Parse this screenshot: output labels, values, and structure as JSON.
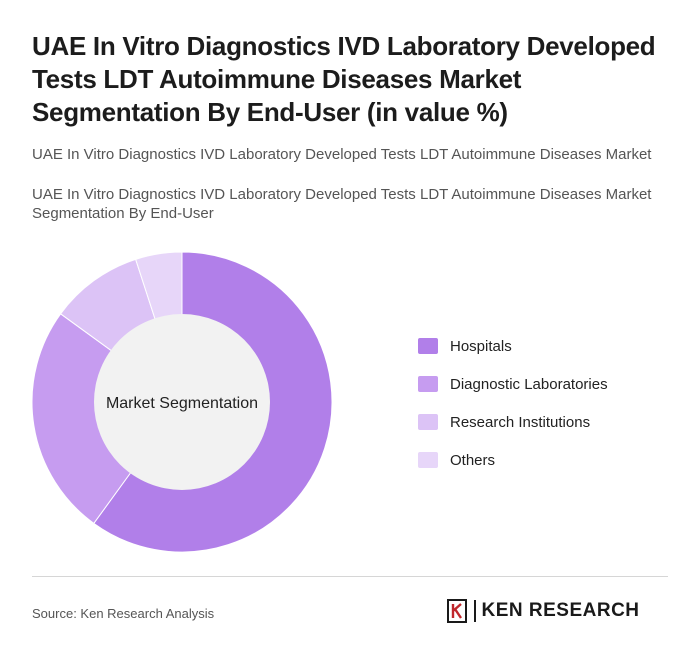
{
  "title": "UAE In Vitro Diagnostics IVD Laboratory Developed Tests LDT Autoimmune Diseases Market Segmentation By End-User (in value %)",
  "subtitle_1": "UAE In Vitro Diagnostics IVD Laboratory Developed Tests LDT Autoimmune Diseases Market",
  "subtitle_2": "UAE In Vitro Diagnostics IVD Laboratory Developed Tests LDT Autoimmune Diseases Market Segmentation By End-User",
  "source": "Source: Ken Research Analysis",
  "logo": {
    "text": "KEN RESEARCH",
    "icon": "ken-research-logo-icon"
  },
  "chart_data": {
    "type": "pie",
    "variant": "donut",
    "center_label": "Market Segmentation",
    "legend_position": "right",
    "categories": [
      "Hospitals",
      "Diagnostic Laboratories",
      "Research Institutions",
      "Others"
    ],
    "values": [
      60,
      25,
      10,
      5
    ],
    "colors": [
      "#b17fe9",
      "#c69cf0",
      "#dcc3f6",
      "#e7d6f9"
    ]
  }
}
